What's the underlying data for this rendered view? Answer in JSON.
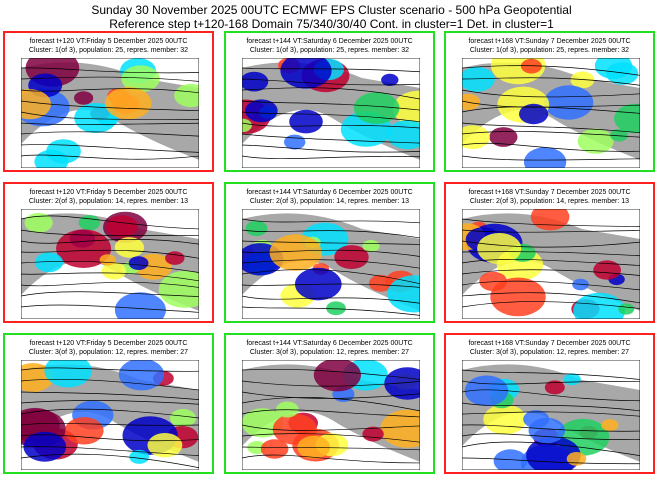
{
  "title": "Sunday 30 November 2025 00UTC ECMWF EPS Cluster scenario - 500 hPa Geopotential",
  "subtitle": "Reference step t+120-168 Domain 75/340/30/40 Cont. in cluster=1 Det. in cluster=1",
  "colors": {
    "red_frame": "#ff2020",
    "green_frame": "#20e020",
    "land": "#a8a8a8"
  },
  "panels": [
    {
      "line1": "forecast t+120 VT:Friday 5 December 2025 00UTC",
      "line2": "Cluster: 1(of 3), population: 25, repres. member: 32",
      "frame": "red"
    },
    {
      "line1": "forecast t+144 VT:Saturday 6 December 2025 00UTC",
      "line2": "Cluster: 1(of 3), population: 25, repres. member: 32",
      "frame": "green"
    },
    {
      "line1": "forecast t+168 VT:Sunday 7 December 2025 00UTC",
      "line2": "Cluster: 1(of 3), population: 25, repres. member: 32",
      "frame": "green"
    },
    {
      "line1": "forecast t+120 VT:Friday 5 December 2025 00UTC",
      "line2": "Cluster: 2(of 3), population: 14, repres. member: 13",
      "frame": "red"
    },
    {
      "line1": "forecast t+144 VT:Saturday 6 December 2025 00UTC",
      "line2": "Cluster: 2(of 3), population: 14, repres. member: 13",
      "frame": "green"
    },
    {
      "line1": "forecast t+168 VT:Sunday 7 December 2025 00UTC",
      "line2": "Cluster: 2(of 3), population: 14, repres. member: 13",
      "frame": "red"
    },
    {
      "line1": "forecast t+120 VT:Friday 5 December 2025 00UTC",
      "line2": "Cluster: 3(of 3), population: 12, repres. member: 27",
      "frame": "green"
    },
    {
      "line1": "forecast t+144 VT:Saturday 6 December 2025 00UTC",
      "line2": "Cluster: 3(of 3), population: 12, repres. member: 27",
      "frame": "green"
    },
    {
      "line1": "forecast t+168 VT:Sunday 7 December 2025 00UTC",
      "line2": "Cluster: 3(of 3), population: 12, repres. member: 27",
      "frame": "red"
    }
  ]
}
